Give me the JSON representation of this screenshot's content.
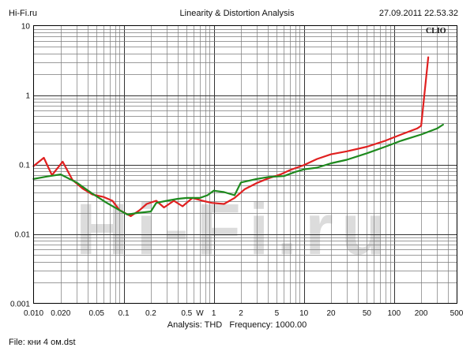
{
  "header": {
    "site": "Hi-Fi.ru",
    "title": "Linearity & Distortion Analysis",
    "timestamp": "27.09.2011 22.53.32"
  },
  "brand": "CLIO",
  "watermark": "Hi-Fi.ru",
  "caption": {
    "analysis": "Analysis: THD",
    "frequency": "Frequency: 1000.00"
  },
  "file": "File: кни 4 ом.dst",
  "colors": {
    "red_series": "#e02020",
    "green_series": "#1e8a1e",
    "grid": "#7a7a7a",
    "frame": "#000000",
    "watermark": "#dcdcdc"
  },
  "chart_data": {
    "type": "line",
    "title": "Linearity & Distortion Analysis",
    "x_scale": "log",
    "y_scale": "log",
    "xlim": [
      0.01,
      500
    ],
    "ylim": [
      0.001,
      10
    ],
    "grid": true,
    "x_tick_labels": [
      {
        "value": 0.01,
        "label": "0.010"
      },
      {
        "value": 0.02,
        "label": "0.020"
      },
      {
        "value": 0.05,
        "label": "0.05"
      },
      {
        "value": 0.1,
        "label": "0.1"
      },
      {
        "value": 0.2,
        "label": "0.2"
      },
      {
        "value": 0.5,
        "label": "0.5"
      },
      {
        "value": 0.7,
        "label": "W"
      },
      {
        "value": 1,
        "label": "1"
      },
      {
        "value": 2,
        "label": "2"
      },
      {
        "value": 5,
        "label": "5"
      },
      {
        "value": 10,
        "label": "10"
      },
      {
        "value": 20,
        "label": "20"
      },
      {
        "value": 50,
        "label": "50"
      },
      {
        "value": 100,
        "label": "100"
      },
      {
        "value": 200,
        "label": "200"
      },
      {
        "value": 500,
        "label": "500"
      }
    ],
    "y_tick_labels": [
      {
        "value": 10,
        "label": "10"
      },
      {
        "value": 1,
        "label": "1"
      },
      {
        "value": 0.1,
        "label": "0.1"
      },
      {
        "value": 0.01,
        "label": "0.01"
      },
      {
        "value": 0.001,
        "label": "0.001"
      }
    ],
    "series": [
      {
        "color": "#e02020",
        "points": [
          [
            0.01,
            0.095
          ],
          [
            0.013,
            0.125
          ],
          [
            0.016,
            0.07
          ],
          [
            0.021,
            0.11
          ],
          [
            0.027,
            0.06
          ],
          [
            0.035,
            0.045
          ],
          [
            0.045,
            0.037
          ],
          [
            0.06,
            0.034
          ],
          [
            0.075,
            0.03
          ],
          [
            0.09,
            0.022
          ],
          [
            0.12,
            0.018
          ],
          [
            0.15,
            0.022
          ],
          [
            0.18,
            0.027
          ],
          [
            0.23,
            0.03
          ],
          [
            0.28,
            0.024
          ],
          [
            0.36,
            0.03
          ],
          [
            0.45,
            0.025
          ],
          [
            0.58,
            0.033
          ],
          [
            0.75,
            0.03
          ],
          [
            0.95,
            0.028
          ],
          [
            1.3,
            0.027
          ],
          [
            1.7,
            0.033
          ],
          [
            2.2,
            0.044
          ],
          [
            3,
            0.054
          ],
          [
            4,
            0.063
          ],
          [
            5.5,
            0.072
          ],
          [
            7,
            0.083
          ],
          [
            10,
            0.098
          ],
          [
            14,
            0.12
          ],
          [
            20,
            0.14
          ],
          [
            30,
            0.155
          ],
          [
            50,
            0.18
          ],
          [
            80,
            0.22
          ],
          [
            120,
            0.27
          ],
          [
            180,
            0.33
          ],
          [
            200,
            0.36
          ],
          [
            240,
            3.5
          ]
        ]
      },
      {
        "color": "#1e8a1e",
        "points": [
          [
            0.01,
            0.062
          ],
          [
            0.014,
            0.067
          ],
          [
            0.02,
            0.072
          ],
          [
            0.03,
            0.055
          ],
          [
            0.045,
            0.038
          ],
          [
            0.065,
            0.028
          ],
          [
            0.09,
            0.022
          ],
          [
            0.11,
            0.019
          ],
          [
            0.14,
            0.02
          ],
          [
            0.2,
            0.021
          ],
          [
            0.23,
            0.028
          ],
          [
            0.3,
            0.03
          ],
          [
            0.4,
            0.032
          ],
          [
            0.5,
            0.033
          ],
          [
            0.7,
            0.033
          ],
          [
            0.85,
            0.036
          ],
          [
            1,
            0.042
          ],
          [
            1.3,
            0.04
          ],
          [
            1.7,
            0.036
          ],
          [
            2,
            0.055
          ],
          [
            3,
            0.062
          ],
          [
            4,
            0.066
          ],
          [
            6,
            0.068
          ],
          [
            8,
            0.078
          ],
          [
            10,
            0.085
          ],
          [
            14,
            0.09
          ],
          [
            20,
            0.104
          ],
          [
            30,
            0.117
          ],
          [
            50,
            0.145
          ],
          [
            80,
            0.18
          ],
          [
            120,
            0.22
          ],
          [
            200,
            0.27
          ],
          [
            300,
            0.33
          ],
          [
            350,
            0.375
          ]
        ]
      }
    ]
  }
}
